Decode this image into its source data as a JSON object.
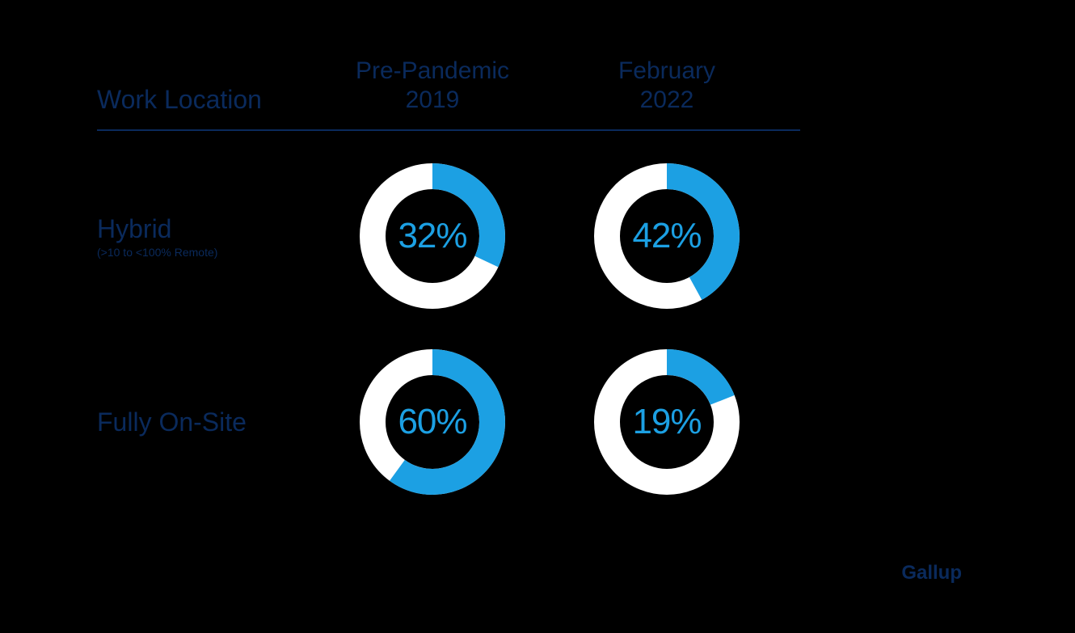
{
  "background_color": "#000000",
  "header": {
    "label": "Work Location",
    "columns": [
      {
        "line1": "Pre-Pandemic",
        "line2": "2019"
      },
      {
        "line1": "February",
        "line2": "2022"
      }
    ],
    "text_color": "#0a2a5c",
    "divider_color": "#0a2a5c",
    "font_size": 30
  },
  "rows": [
    {
      "label": "Hybrid",
      "sublabel": "(>10 to <100% Remote)",
      "values": [
        {
          "percent": 32,
          "display": "32%"
        },
        {
          "percent": 42,
          "display": "42%"
        }
      ]
    },
    {
      "label": "Fully On-Site",
      "sublabel": "",
      "values": [
        {
          "percent": 60,
          "display": "60%"
        },
        {
          "percent": 19,
          "display": "19%"
        }
      ]
    }
  ],
  "donut_style": {
    "outer_radius": 90,
    "stroke_width": 32,
    "fill_color": "#1ca0e3",
    "empty_color": "#ffffff",
    "text_color": "#1ca0e3",
    "text_fontsize": 44
  },
  "source": "Gallup",
  "source_color": "#0a2a5c"
}
